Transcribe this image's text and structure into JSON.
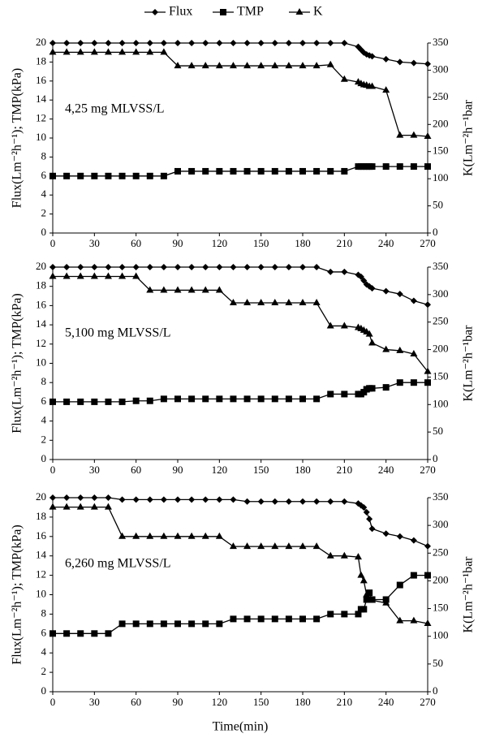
{
  "chart_data": [
    {
      "type": "line",
      "annotation": "4,25 mg MLVSS/L",
      "ylabel": "Flux(Lm⁻²h⁻¹); TMP(kPa)",
      "y2label": "K(Lm⁻²h⁻¹bar",
      "x": [
        0,
        10,
        20,
        30,
        40,
        50,
        60,
        70,
        80,
        90,
        100,
        110,
        120,
        130,
        140,
        150,
        160,
        170,
        180,
        190,
        200,
        210,
        220,
        222,
        224,
        226,
        228,
        230,
        240,
        250,
        260,
        270
      ],
      "xlim": [
        0,
        270
      ],
      "xticks": [
        0,
        30,
        60,
        90,
        120,
        150,
        180,
        210,
        240,
        270
      ],
      "ylim": [
        0,
        20
      ],
      "yticks": [
        0,
        2,
        4,
        6,
        8,
        10,
        12,
        14,
        16,
        18,
        20
      ],
      "y2lim": [
        0,
        350
      ],
      "y2ticks": [
        0,
        50,
        100,
        150,
        200,
        250,
        300,
        350
      ],
      "series": [
        {
          "name": "Flux",
          "color": "#000000",
          "marker": "diamond",
          "values": [
            20,
            20,
            20,
            20,
            20,
            20,
            20,
            20,
            20,
            20,
            20,
            20,
            20,
            20,
            20,
            20,
            20,
            20,
            20,
            20,
            20,
            20,
            19.6,
            19.3,
            19.0,
            18.8,
            18.7,
            18.6,
            18.3,
            18.0,
            17.9,
            17.8
          ]
        },
        {
          "name": "TMP",
          "color": "#000000",
          "marker": "square",
          "values": [
            6,
            6,
            6,
            6,
            6,
            6,
            6,
            6,
            6,
            6.5,
            6.5,
            6.5,
            6.5,
            6.5,
            6.5,
            6.5,
            6.5,
            6.5,
            6.5,
            6.5,
            6.5,
            6.5,
            7,
            7,
            7,
            7,
            7,
            7,
            7,
            7,
            7,
            7
          ]
        },
        {
          "name": "K",
          "color": "#000000",
          "marker": "triangle",
          "axis": "y2",
          "values": [
            333,
            333,
            333,
            333,
            333,
            333,
            333,
            333,
            333,
            308,
            308,
            308,
            308,
            308,
            308,
            308,
            308,
            308,
            308,
            308,
            310,
            283,
            278,
            275,
            273,
            272,
            270,
            270,
            263,
            180,
            180,
            178
          ]
        }
      ]
    },
    {
      "type": "line",
      "annotation": "5,100 mg MLVSS/L",
      "ylabel": "Flux(Lm⁻²h⁻¹); TMP(kPa)",
      "y2label": "K(Lm⁻²h⁻¹bar",
      "x": [
        0,
        10,
        20,
        30,
        40,
        50,
        60,
        70,
        80,
        90,
        100,
        110,
        120,
        130,
        140,
        150,
        160,
        170,
        180,
        190,
        200,
        210,
        220,
        222,
        224,
        226,
        228,
        230,
        240,
        250,
        260,
        270
      ],
      "xlim": [
        0,
        270
      ],
      "xticks": [
        0,
        30,
        60,
        90,
        120,
        150,
        180,
        210,
        240,
        270
      ],
      "ylim": [
        0,
        20
      ],
      "yticks": [
        0,
        2,
        4,
        6,
        8,
        10,
        12,
        14,
        16,
        18,
        20
      ],
      "y2lim": [
        0,
        350
      ],
      "y2ticks": [
        0,
        50,
        100,
        150,
        200,
        250,
        300,
        350
      ],
      "series": [
        {
          "color": "#000000",
          "marker": "diamond",
          "values": [
            20,
            20,
            20,
            20,
            20,
            20,
            20,
            20,
            20,
            20,
            20,
            20,
            20,
            20,
            20,
            20,
            20,
            20,
            20,
            20,
            19.5,
            19.5,
            19.2,
            19.0,
            18.6,
            18.2,
            18.0,
            17.8,
            17.5,
            17.2,
            16.5,
            16.1
          ]
        },
        {
          "color": "#000000",
          "marker": "square",
          "values": [
            6,
            6,
            6,
            6,
            6,
            6,
            6.1,
            6.1,
            6.3,
            6.3,
            6.3,
            6.3,
            6.3,
            6.3,
            6.3,
            6.3,
            6.3,
            6.3,
            6.3,
            6.3,
            6.8,
            6.8,
            6.8,
            6.8,
            7.0,
            7.3,
            7.4,
            7.4,
            7.5,
            8,
            8,
            8
          ]
        },
        {
          "color": "#000000",
          "marker": "triangle",
          "axis": "y2",
          "values": [
            333,
            333,
            333,
            333,
            333,
            333,
            333,
            308,
            308,
            308,
            308,
            308,
            308,
            285,
            285,
            285,
            285,
            285,
            285,
            285,
            243,
            243,
            240,
            238,
            235,
            232,
            228,
            212,
            200,
            198,
            192,
            160
          ]
        }
      ]
    },
    {
      "type": "line",
      "annotation": "6,260 mg MLVSS/L",
      "ylabel": "Flux(Lm⁻²h⁻¹); TMP(kPa)",
      "y2label": "K(Lm⁻²h⁻¹bar",
      "xlabel": "Time(min)",
      "x": [
        0,
        10,
        20,
        30,
        40,
        50,
        60,
        70,
        80,
        90,
        100,
        110,
        120,
        130,
        140,
        150,
        160,
        170,
        180,
        190,
        200,
        210,
        220,
        222,
        224,
        226,
        228,
        230,
        240,
        250,
        260,
        270
      ],
      "xlim": [
        0,
        270
      ],
      "xticks": [
        0,
        30,
        60,
        90,
        120,
        150,
        180,
        210,
        240,
        270
      ],
      "ylim": [
        0,
        20
      ],
      "yticks": [
        0,
        2,
        4,
        6,
        8,
        10,
        12,
        14,
        16,
        18,
        20
      ],
      "y2lim": [
        0,
        350
      ],
      "y2ticks": [
        0,
        50,
        100,
        150,
        200,
        250,
        300,
        350
      ],
      "series": [
        {
          "color": "#000000",
          "marker": "diamond",
          "values": [
            20,
            20,
            20,
            20,
            20,
            19.8,
            19.8,
            19.8,
            19.8,
            19.8,
            19.8,
            19.8,
            19.8,
            19.8,
            19.6,
            19.6,
            19.6,
            19.6,
            19.6,
            19.6,
            19.6,
            19.6,
            19.4,
            19.2,
            19.0,
            18.5,
            17.8,
            16.8,
            16.3,
            16.0,
            15.6,
            15.0
          ]
        },
        {
          "color": "#000000",
          "marker": "square",
          "values": [
            6,
            6,
            6,
            6,
            6,
            7,
            7,
            7,
            7,
            7,
            7,
            7,
            7,
            7.5,
            7.5,
            7.5,
            7.5,
            7.5,
            7.5,
            7.5,
            8,
            8,
            8,
            8.5,
            8.5,
            9.5,
            10.2,
            9.5,
            9.5,
            11,
            12,
            12
          ]
        },
        {
          "color": "#000000",
          "marker": "triangle",
          "axis": "y2",
          "values": [
            333,
            333,
            333,
            333,
            333,
            280,
            280,
            280,
            280,
            280,
            280,
            280,
            280,
            262,
            262,
            262,
            262,
            262,
            262,
            262,
            245,
            245,
            243,
            210,
            200,
            175,
            165,
            165,
            160,
            128,
            128,
            123
          ]
        }
      ]
    }
  ]
}
